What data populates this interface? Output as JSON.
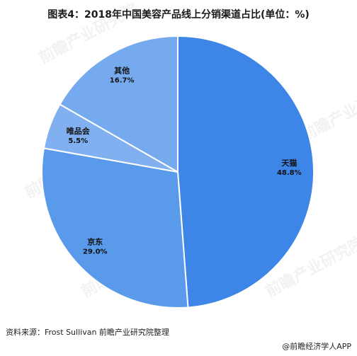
{
  "title": "图表4：2018年中国美容产品线上分销渠道占比(单位：%)",
  "source": "资料来源：Frost Sullivan 前瞻产业研究院整理",
  "brand": "@前瞻经济学人APP",
  "watermark": "前瞻产业研究院",
  "chart_data": {
    "type": "pie",
    "title": "图表4：2018年中国美容产品线上分销渠道占比(单位：%)",
    "unit": "%",
    "slices": [
      {
        "label": "天猫",
        "value": 48.8,
        "value_label": "48.8%",
        "color": "#3d85e6"
      },
      {
        "label": "京东",
        "value": 29.0,
        "value_label": "29.0%",
        "color": "#5a9aea"
      },
      {
        "label": "唯品会",
        "value": 5.5,
        "value_label": "5.5%",
        "color": "#80b0ef"
      },
      {
        "label": "其他",
        "value": 16.7,
        "value_label": "16.7%",
        "color": "#76aaee"
      }
    ],
    "start_angle_deg": 0,
    "direction": "clockwise",
    "legend": "none"
  }
}
